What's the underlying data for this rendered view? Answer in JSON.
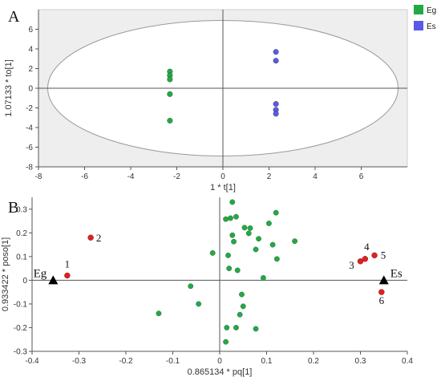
{
  "chart_data": [
    {
      "panel": "A",
      "type": "scatter",
      "xlabel": "1 * t[1]",
      "ylabel": "1.07133 * to[1]",
      "xlim": [
        -8,
        8
      ],
      "ylim": [
        -8,
        8
      ],
      "xticks": [
        -8,
        -6,
        -4,
        -2,
        0,
        2,
        4,
        6
      ],
      "yticks": [
        -8,
        -6,
        -4,
        -2,
        0,
        2,
        4,
        6
      ],
      "ellipse": {
        "cx": 0,
        "cy": 0,
        "rx": 7.6,
        "ry": 6.9
      },
      "legend": {
        "position": "right",
        "entries": [
          {
            "name": "Eg",
            "color": "#22a946"
          },
          {
            "name": "Es",
            "color": "#5a5ae6"
          }
        ]
      },
      "series": [
        {
          "name": "Eg",
          "color": "#22a946",
          "points": [
            [
              -2.3,
              1.7
            ],
            [
              -2.3,
              1.3
            ],
            [
              -2.3,
              0.9
            ],
            [
              -2.3,
              -0.6
            ],
            [
              -2.3,
              -3.3
            ]
          ]
        },
        {
          "name": "Es",
          "color": "#5a5ae6",
          "points": [
            [
              2.3,
              3.7
            ],
            [
              2.3,
              2.8
            ],
            [
              2.3,
              -1.6
            ],
            [
              2.3,
              -2.2
            ],
            [
              2.3,
              -2.6
            ]
          ]
        }
      ]
    },
    {
      "panel": "B",
      "type": "scatter",
      "xlabel": "0.865134 * pq[1]",
      "ylabel": "0.933422 * poso[1]",
      "xlim": [
        -0.4,
        0.4
      ],
      "ylim": [
        -0.3,
        0.35
      ],
      "xticks": [
        -0.4,
        -0.3,
        -0.2,
        -0.1,
        0,
        0.1,
        0.2,
        0.3,
        0.4
      ],
      "yticks": [
        -0.3,
        -0.2,
        -0.1,
        0,
        0.1,
        0.2,
        0.3
      ],
      "class_markers": [
        {
          "label": "Eg",
          "x": -0.355,
          "y": 0.0
        },
        {
          "label": "Es",
          "x": 0.35,
          "y": 0.0
        }
      ],
      "highlighted": [
        {
          "label": "1",
          "x": -0.325,
          "y": 0.02
        },
        {
          "label": "2",
          "x": -0.275,
          "y": 0.18
        },
        {
          "label": "3",
          "x": 0.3,
          "y": 0.08
        },
        {
          "label": "4",
          "x": 0.31,
          "y": 0.09
        },
        {
          "label": "5",
          "x": 0.33,
          "y": 0.105
        },
        {
          "label": "6",
          "x": 0.345,
          "y": -0.05
        }
      ],
      "highlight_color": "#e02020",
      "points_color": "#22a946",
      "points": [
        [
          0.013,
          0.258
        ],
        [
          0.023,
          0.262
        ],
        [
          0.027,
          0.33
        ],
        [
          0.035,
          0.268
        ],
        [
          0.053,
          0.222
        ],
        [
          0.065,
          0.22
        ],
        [
          0.12,
          0.285
        ],
        [
          0.105,
          0.24
        ],
        [
          0.027,
          0.19
        ],
        [
          0.062,
          0.198
        ],
        [
          0.03,
          0.163
        ],
        [
          0.083,
          0.175
        ],
        [
          0.16,
          0.165
        ],
        [
          0.113,
          0.15
        ],
        [
          0.077,
          0.13
        ],
        [
          -0.015,
          0.115
        ],
        [
          0.018,
          0.105
        ],
        [
          0.02,
          0.05
        ],
        [
          0.038,
          0.042
        ],
        [
          0.093,
          0.01
        ],
        [
          0.122,
          0.09
        ],
        [
          -0.062,
          -0.025
        ],
        [
          -0.045,
          -0.1
        ],
        [
          0.047,
          -0.06
        ],
        [
          0.05,
          -0.11
        ],
        [
          0.043,
          -0.145
        ],
        [
          0.035,
          -0.2
        ],
        [
          0.015,
          -0.2
        ],
        [
          0.077,
          -0.205
        ],
        [
          0.013,
          -0.26
        ],
        [
          -0.13,
          -0.14
        ]
      ]
    }
  ],
  "panel_labels": {
    "a": "A",
    "b": "B"
  }
}
